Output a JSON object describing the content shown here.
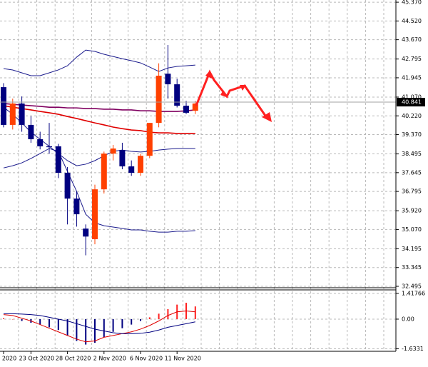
{
  "chart_data": [
    {
      "type": "candlestick",
      "categories": [
        "2020",
        null,
        null,
        "23 Oct 2020",
        null,
        null,
        null,
        "28 Oct 2020",
        null,
        null,
        null,
        "2 Nov 2020",
        null,
        null,
        null,
        "6 Nov 2020",
        null,
        null,
        null,
        "11 Nov 2020",
        null,
        null
      ],
      "open": [
        41.52,
        39.81,
        40.78,
        39.81,
        39.16,
        38.84,
        38.84,
        37.64,
        36.47,
        35.11,
        34.63,
        36.89,
        38.51,
        38.67,
        37.93,
        37.64,
        38.41,
        39.9,
        42.13,
        41.65,
        40.68,
        40.45
      ],
      "high": [
        41.7,
        41.0,
        41.1,
        40.2,
        39.5,
        39.9,
        38.95,
        37.9,
        36.8,
        35.3,
        37.1,
        38.6,
        38.9,
        39.0,
        38.2,
        38.5,
        39.9,
        42.6,
        43.43,
        41.9,
        40.9,
        40.9
      ],
      "low": [
        39.7,
        39.6,
        39.5,
        39.0,
        38.7,
        38.5,
        37.4,
        35.3,
        35.2,
        33.9,
        34.4,
        36.7,
        38.2,
        37.8,
        37.5,
        37.5,
        38.3,
        39.7,
        41.0,
        40.6,
        40.3,
        40.3
      ],
      "close": [
        39.81,
        40.78,
        39.81,
        39.16,
        38.84,
        38.8,
        37.64,
        36.47,
        35.76,
        34.75,
        36.89,
        38.51,
        38.74,
        37.93,
        37.64,
        38.41,
        39.9,
        42.04,
        41.65,
        40.68,
        40.36,
        40.78
      ],
      "up_color": "#ff4000",
      "down_color": "#000080",
      "overlays": [
        {
          "color": "#1a1a8c",
          "values": [
            42.36,
            42.3,
            42.17,
            42.04,
            42.04,
            42.17,
            42.3,
            42.49,
            42.88,
            43.2,
            43.14,
            43.01,
            42.91,
            42.81,
            42.72,
            42.62,
            42.43,
            42.23,
            42.39,
            42.46,
            42.49,
            42.52
          ]
        },
        {
          "color": "#1a1a8c",
          "values": [
            40.61,
            40.29,
            39.9,
            39.48,
            39.16,
            38.84,
            38.51,
            38.19,
            37.96,
            38.03,
            38.19,
            38.41,
            38.61,
            38.67,
            38.61,
            38.58,
            38.61,
            38.67,
            38.71,
            38.74,
            38.74,
            38.74
          ]
        },
        {
          "color": "#1a1a8c",
          "values": [
            37.86,
            37.96,
            38.09,
            38.29,
            38.51,
            38.74,
            38.61,
            37.7,
            36.8,
            35.76,
            35.37,
            35.24,
            35.18,
            35.12,
            35.05,
            35.05,
            34.99,
            34.95,
            34.95,
            34.99,
            34.99,
            35.02
          ]
        },
        {
          "color": "#800060",
          "values": [
            40.78,
            40.74,
            40.71,
            40.68,
            40.65,
            40.61,
            40.61,
            40.58,
            40.58,
            40.55,
            40.55,
            40.52,
            40.52,
            40.49,
            40.49,
            40.45,
            40.45,
            40.42,
            40.42,
            40.42,
            40.45,
            40.49
          ]
        },
        {
          "color": "#e00000",
          "values": [
            40.68,
            40.61,
            40.55,
            40.49,
            40.42,
            40.36,
            40.29,
            40.19,
            40.1,
            40.0,
            39.9,
            39.81,
            39.71,
            39.64,
            39.58,
            39.55,
            39.48,
            39.45,
            39.45,
            39.42,
            39.42,
            39.42
          ]
        }
      ],
      "last_price": 40.841,
      "ylim": [
        32.43,
        45.47
      ],
      "yticks": [
        {
          "value": 45.37,
          "label": "45.370"
        },
        {
          "value": 44.52,
          "label": "44.520"
        },
        {
          "value": 43.67,
          "label": "43.670"
        },
        {
          "value": 42.795,
          "label": "42.795"
        },
        {
          "value": 41.945,
          "label": "41.945"
        },
        {
          "value": 41.07,
          "label": "41.070"
        },
        {
          "value": 40.22,
          "label": "40.220"
        },
        {
          "value": 39.37,
          "label": "39.370"
        },
        {
          "value": 38.495,
          "label": "38.495"
        },
        {
          "value": 37.645,
          "label": "37.645"
        },
        {
          "value": 36.795,
          "label": "36.795"
        },
        {
          "value": 35.92,
          "label": "35.920"
        },
        {
          "value": 35.07,
          "label": "35.070"
        },
        {
          "value": 34.195,
          "label": "34.195"
        },
        {
          "value": 33.345,
          "label": "33.345"
        },
        {
          "value": 32.495,
          "label": "32.495"
        }
      ],
      "grid": true
    },
    {
      "type": "macd",
      "values": [
        0.05,
        0.0,
        -0.1,
        -0.2,
        -0.3,
        -0.45,
        -0.6,
        -0.9,
        -1.2,
        -1.4,
        -1.3,
        -1.0,
        -0.7,
        -0.5,
        -0.3,
        -0.1,
        0.1,
        0.3,
        0.55,
        0.8,
        0.9,
        0.7
      ],
      "up_color": "#ff2020",
      "down_color": "#000080",
      "lines": [
        {
          "color": "#e00000",
          "values": [
            0.25,
            0.2,
            0.05,
            -0.1,
            -0.3,
            -0.5,
            -0.7,
            -0.9,
            -1.1,
            -1.25,
            -1.2,
            -1.0,
            -0.9,
            -0.8,
            -0.7,
            -0.55,
            -0.35,
            -0.1,
            0.2,
            0.4,
            0.45,
            0.4
          ]
        },
        {
          "color": "#000080",
          "values": [
            0.3,
            0.3,
            0.28,
            0.25,
            0.2,
            0.1,
            0.0,
            -0.1,
            -0.25,
            -0.4,
            -0.55,
            -0.65,
            -0.75,
            -0.8,
            -0.8,
            -0.78,
            -0.72,
            -0.6,
            -0.45,
            -0.35,
            -0.25,
            -0.15
          ]
        }
      ],
      "ylim": [
        -1.77,
        1.61
      ],
      "yticks": [
        1.41766,
        {
          "value": 0,
          "label": "0.00"
        },
        -1.6331
      ],
      "grid": true
    }
  ]
}
